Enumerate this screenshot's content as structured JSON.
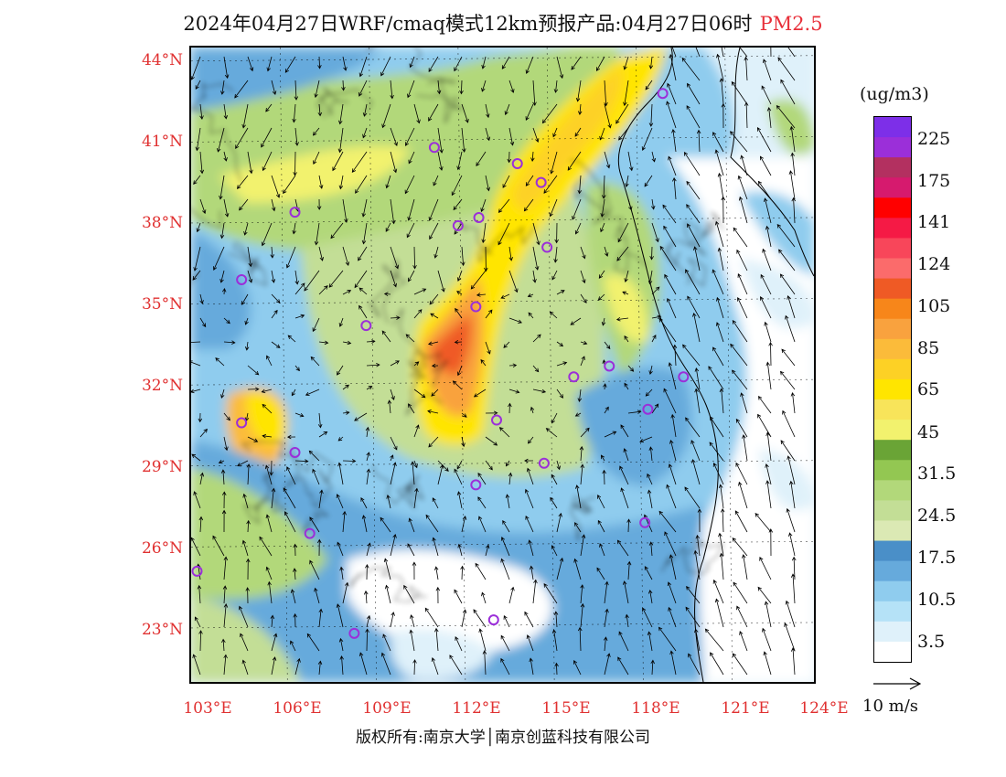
{
  "title": {
    "main": "2024年04月27日WRF/cmaq模式12km预报产品:04月27日06时",
    "variable": "PM2.5"
  },
  "colors": {
    "title_variable": "#e8303a",
    "axis_labels": "#e03030",
    "station_marker": "#9b2fd9",
    "clean_area": "#ffffff",
    "sea_area": "#dff1fa"
  },
  "map": {
    "lat_labels": [
      "44°N",
      "41°N",
      "38°N",
      "35°N",
      "32°N",
      "29°N",
      "26°N",
      "23°N"
    ],
    "lon_labels": [
      "103°E",
      "106°E",
      "109°E",
      "112°E",
      "115°E",
      "118°E",
      "121°E",
      "124°E"
    ],
    "lat_range": [
      21,
      44.5
    ],
    "lon_range": [
      103,
      124
    ],
    "stations": [
      {
        "lon": 118.9,
        "lat": 42.8
      },
      {
        "lon": 111.2,
        "lat": 40.8
      },
      {
        "lon": 114.0,
        "lat": 40.2
      },
      {
        "lon": 114.8,
        "lat": 39.5
      },
      {
        "lon": 106.5,
        "lat": 38.4
      },
      {
        "lon": 112.0,
        "lat": 37.9
      },
      {
        "lon": 112.7,
        "lat": 38.2
      },
      {
        "lon": 115.0,
        "lat": 37.1
      },
      {
        "lon": 104.7,
        "lat": 35.9
      },
      {
        "lon": 112.6,
        "lat": 34.9
      },
      {
        "lon": 108.9,
        "lat": 34.2
      },
      {
        "lon": 115.9,
        "lat": 32.3
      },
      {
        "lon": 117.1,
        "lat": 32.7
      },
      {
        "lon": 119.6,
        "lat": 32.3
      },
      {
        "lon": 118.4,
        "lat": 31.1
      },
      {
        "lon": 104.7,
        "lat": 30.6
      },
      {
        "lon": 113.3,
        "lat": 30.7
      },
      {
        "lon": 106.5,
        "lat": 29.5
      },
      {
        "lon": 114.9,
        "lat": 29.1
      },
      {
        "lon": 112.6,
        "lat": 28.3
      },
      {
        "lon": 107.0,
        "lat": 26.5
      },
      {
        "lon": 118.3,
        "lat": 26.9
      },
      {
        "lon": 103.2,
        "lat": 25.1
      },
      {
        "lon": 113.2,
        "lat": 23.3
      },
      {
        "lon": 108.5,
        "lat": 22.8
      }
    ]
  },
  "colorbar": {
    "units": "(ug/m3)",
    "colors": [
      "#ffffff",
      "#dff1fa",
      "#b5e2f7",
      "#8fccee",
      "#66aadc",
      "#4a8fc8",
      "#dbe9b4",
      "#c3de96",
      "#b2d87a",
      "#93c752",
      "#6aa436",
      "#f2f26e",
      "#f8e45a",
      "#ffe500",
      "#fdd125",
      "#fbbb3a",
      "#f9a23e",
      "#f7861a",
      "#ef5a25",
      "#fb6b6b",
      "#f8465a",
      "#f51a45",
      "#ff0000",
      "#d61a6e",
      "#b33060",
      "#9b2fd9",
      "#7d2fe8"
    ],
    "labels": [
      "3.5",
      "10.5",
      "17.5",
      "24.5",
      "31.5",
      "45",
      "65",
      "85",
      "105",
      "124",
      "141",
      "175",
      "225"
    ]
  },
  "wind_reference": "10 m/s",
  "copyright": "版权所有:南京大学│南京创蓝科技有限公司"
}
